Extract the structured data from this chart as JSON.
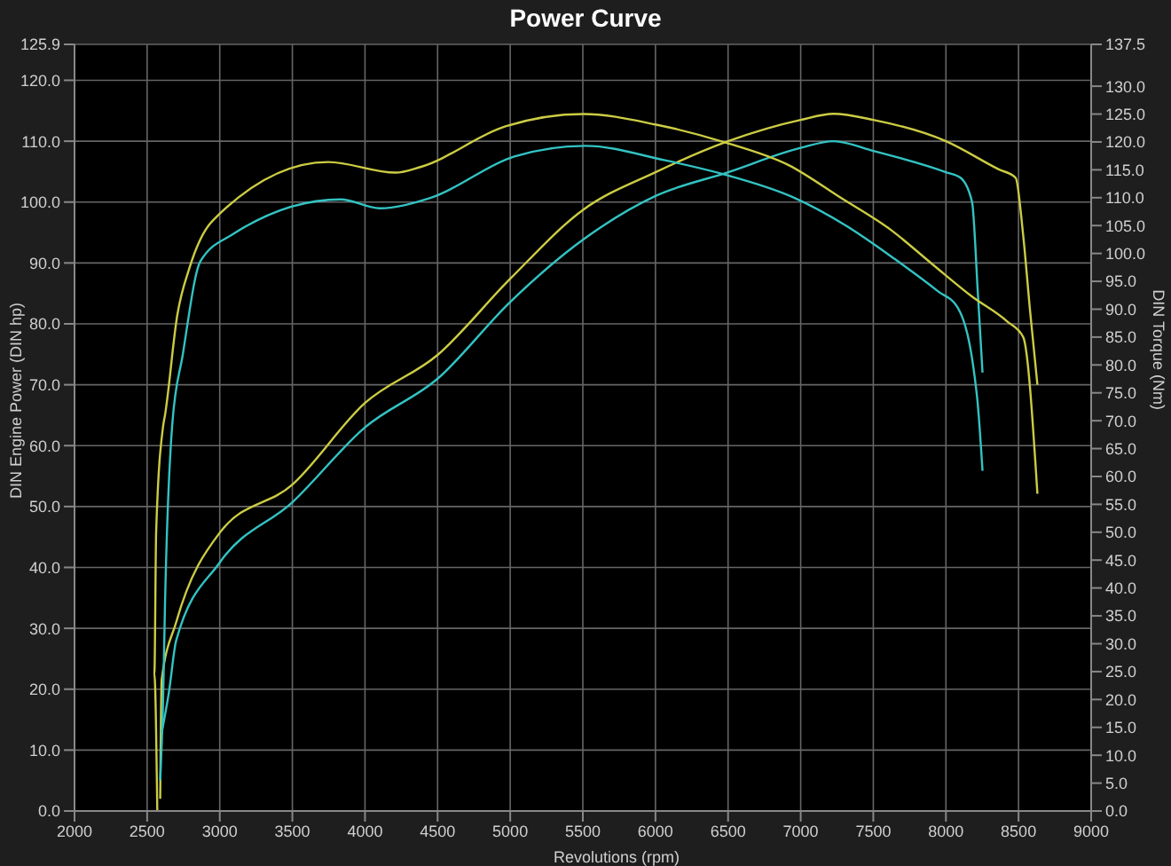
{
  "chart_data": {
    "type": "line",
    "title": "Power Curve",
    "xlabel": "Revolutions (rpm)",
    "ylabel": "DIN Engine Power (DIN hp)",
    "y2label": "DIN Torque (Nm)",
    "xlim": [
      2000,
      9000
    ],
    "xticks": [
      2000,
      2500,
      3000,
      3500,
      4000,
      4500,
      5000,
      5500,
      6000,
      6500,
      7000,
      7500,
      8000,
      8500,
      9000
    ],
    "ylim": [
      0,
      125.9
    ],
    "yticks": [
      {
        "value": 0,
        "label": "0.0"
      },
      {
        "value": 10,
        "label": "10.0"
      },
      {
        "value": 20,
        "label": "20.0"
      },
      {
        "value": 30,
        "label": "30.0"
      },
      {
        "value": 40,
        "label": "40.0"
      },
      {
        "value": 50,
        "label": "50.0"
      },
      {
        "value": 60,
        "label": "60.0"
      },
      {
        "value": 70,
        "label": "70.0"
      },
      {
        "value": 80,
        "label": "80.0"
      },
      {
        "value": 90,
        "label": "90.0"
      },
      {
        "value": 100,
        "label": "100.0"
      },
      {
        "value": 110,
        "label": "110.0"
      },
      {
        "value": 120,
        "label": "120.0"
      },
      125.9
    ],
    "y2lim": [
      0,
      137.5
    ],
    "y2ticks": [
      {
        "value": 0,
        "label": "0.0"
      },
      {
        "value": 5,
        "label": "5.0"
      },
      {
        "value": 10,
        "label": "10.0"
      },
      {
        "value": 15,
        "label": "15.0"
      },
      {
        "value": 20,
        "label": "20.0"
      },
      {
        "value": 25,
        "label": "25.0"
      },
      {
        "value": 30,
        "label": "30.0"
      },
      {
        "value": 35,
        "label": "35.0"
      },
      {
        "value": 40,
        "label": "40.0"
      },
      {
        "value": 45,
        "label": "45.0"
      },
      {
        "value": 50,
        "label": "50.0"
      },
      {
        "value": 55,
        "label": "55.0"
      },
      {
        "value": 60,
        "label": "60.0"
      },
      {
        "value": 65,
        "label": "65.0"
      },
      {
        "value": 70,
        "label": "70.0"
      },
      {
        "value": 75,
        "label": "75.0"
      },
      {
        "value": 80,
        "label": "80.0"
      },
      {
        "value": 85,
        "label": "85.0"
      },
      {
        "value": 90,
        "label": "90.0"
      },
      {
        "value": 95,
        "label": "95.0"
      },
      {
        "value": 100,
        "label": "100.0"
      },
      {
        "value": 105,
        "label": "105.0"
      },
      {
        "value": 110,
        "label": "110.0"
      },
      {
        "value": 115,
        "label": "115.0"
      },
      {
        "value": 120,
        "label": "120.0"
      },
      {
        "value": 125,
        "label": "125.0"
      },
      {
        "value": 130,
        "label": "130.0"
      },
      137.5
    ],
    "grid": true,
    "marker": "none",
    "line_style": "solid",
    "series": [
      {
        "color": "#cccc44",
        "x": [
          2590,
          2600,
          2700,
          3000,
          3500,
          4000,
          4500,
          5000,
          5500,
          6000,
          6500,
          7000,
          7226,
          7500,
          8000,
          8361,
          8480,
          8530,
          8580,
          8630
        ],
        "values": [
          2,
          21.5,
          31,
          45.7,
          53.6,
          67,
          74.9,
          87.4,
          98.7,
          104.9,
          110,
          113.5,
          114.5,
          113.5,
          110,
          105.4,
          104,
          95,
          82,
          70
        ]
      },
      {
        "color": "#33c3c3",
        "x": [
          2600,
          2650,
          2700,
          3000,
          3500,
          4000,
          4500,
          5000,
          5500,
          6000,
          6500,
          7000,
          7226,
          7500,
          8000,
          8100,
          8180,
          8220,
          8252
        ],
        "values": [
          12.8,
          19.5,
          28,
          40.8,
          50.7,
          63,
          71,
          83.6,
          93.8,
          101,
          104.9,
          108.9,
          110,
          108.4,
          104.9,
          104,
          100,
          85,
          72
        ]
      },
      {
        "color": "#cccc44",
        "axis": "y2",
        "x": [
          2570,
          2550,
          2562,
          2610,
          2623,
          2708,
          2794,
          2952,
          3746,
          4210,
          4381,
          4967,
          5504,
          6005,
          6481,
          6920,
          7275,
          7617,
          7910,
          8178,
          8422,
          8532,
          8630
        ],
        "values": [
          0,
          24.6,
          50,
          69,
          71,
          89,
          97.6,
          105.9,
          116.4,
          114.5,
          115.5,
          122.8,
          125,
          123.1,
          119.9,
          115.8,
          110,
          104.3,
          98,
          92.3,
          87.8,
          85,
          56.9
        ]
      },
      {
        "color": "#33c3c3",
        "axis": "y2",
        "x": [
          2590,
          2610,
          2623,
          2672,
          2745,
          2867,
          3087,
          3832,
          4100,
          4454,
          5028,
          5516,
          6066,
          6469,
          6945,
          7311,
          7653,
          7946,
          8081,
          8215,
          8252
        ],
        "values": [
          5.5,
          20,
          37,
          69,
          81.8,
          98.6,
          103.4,
          109.7,
          108.1,
          110,
          117.4,
          119.3,
          116.7,
          114.2,
          110.1,
          105,
          98.9,
          93.2,
          90.3,
          74.1,
          61
        ]
      }
    ]
  }
}
